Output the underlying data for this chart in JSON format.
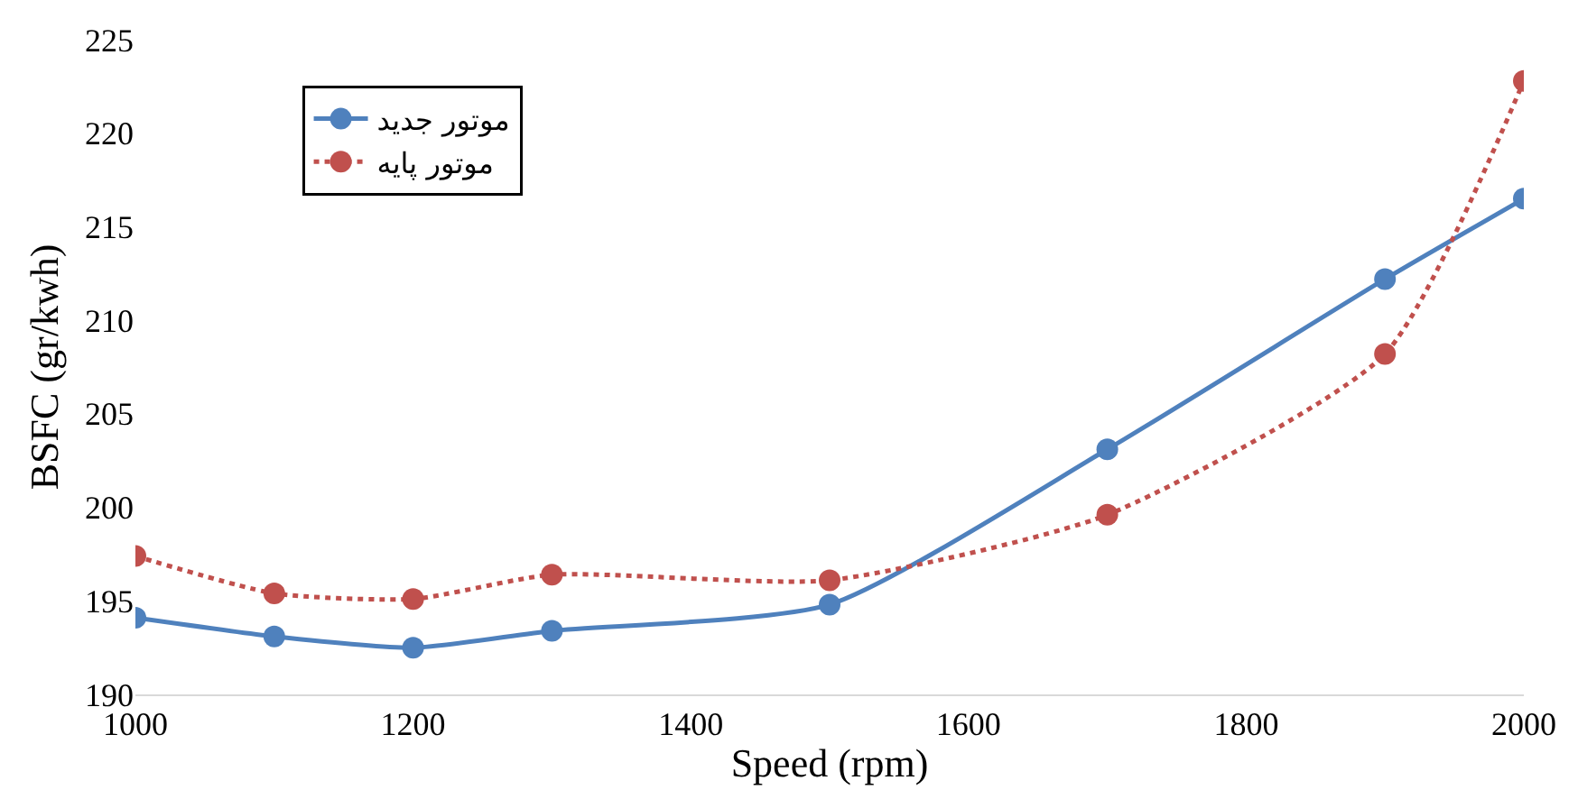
{
  "chart_data": {
    "type": "line",
    "xlabel": "Speed (rpm)",
    "ylabel": "BSFC (gr/kwh)",
    "xlim": [
      1000,
      2000
    ],
    "xticks": [
      1000,
      1200,
      1400,
      1600,
      1800,
      2000
    ],
    "ylim": [
      190,
      225
    ],
    "yticks": [
      190,
      195,
      200,
      205,
      210,
      215,
      220,
      225
    ],
    "grid": false,
    "legend": "top left",
    "marker": "circle",
    "series": [
      {
        "name": "موتور جدید",
        "color": "#4f81bd",
        "line_style": "solid",
        "x": [
          1000,
          1100,
          1200,
          1300,
          1500,
          1700,
          1900,
          2000
        ],
        "values": [
          194.1,
          193.1,
          192.5,
          193.4,
          194.8,
          203.1,
          212.2,
          216.5
        ]
      },
      {
        "name": "موتور پایه",
        "color": "#c0504d",
        "line_style": "dotted",
        "x": [
          1000,
          1100,
          1200,
          1300,
          1500,
          1700,
          1900,
          2000
        ],
        "values": [
          197.4,
          195.4,
          195.1,
          196.4,
          196.1,
          199.6,
          208.2,
          222.8
        ]
      }
    ]
  }
}
